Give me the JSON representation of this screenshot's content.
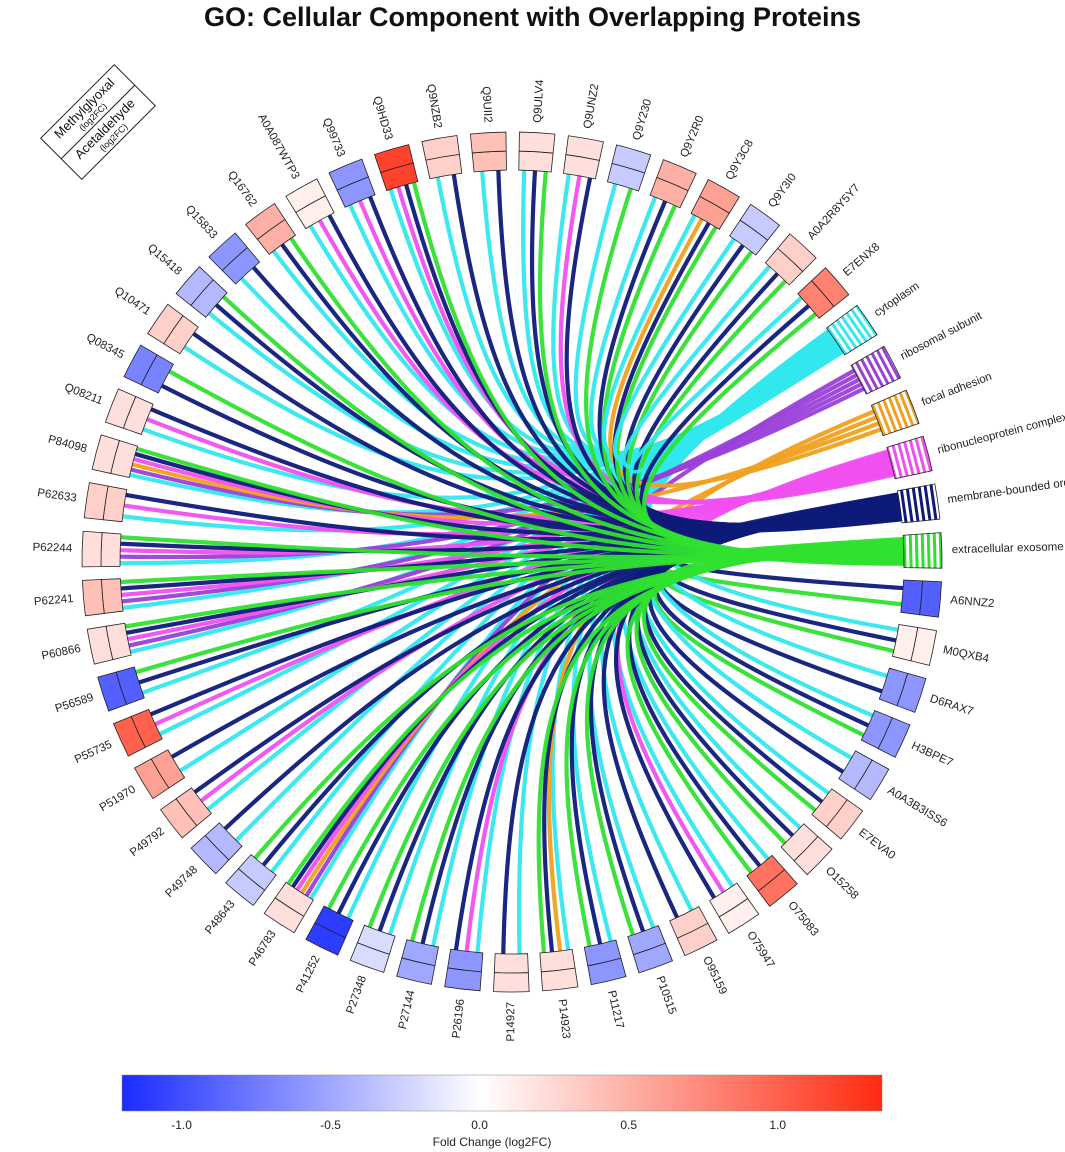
{
  "chart_data": {
    "type": "chord",
    "title": "GO: Cellular Component with Overlapping Proteins",
    "corner_legend": {
      "inner": {
        "name": "Methylglyoxal",
        "unit": "(log2FC)"
      },
      "outer": {
        "name": "Acetaldehyde",
        "unit": "(log2FC)"
      }
    },
    "colorbar": {
      "label": "Fold Change (log2FC)",
      "min": -1.2,
      "max": 1.35,
      "ticks": [
        -1.0,
        -0.5,
        0.0,
        0.5,
        1.0
      ],
      "tick_labels": [
        "-1.0",
        "-0.5",
        "0.0",
        "0.5",
        "1.0"
      ],
      "colors": [
        "#1a2bff",
        "#ffffff",
        "#ff2a10"
      ]
    },
    "terms": [
      {
        "name": "cytoplasm",
        "color": "#33e8ee"
      },
      {
        "name": "ribosomal subunit",
        "color": "#9a40d8"
      },
      {
        "name": "focal adhesion",
        "color": "#f0a020"
      },
      {
        "name": "ribonucleoprotein complex",
        "color": "#f050f0"
      },
      {
        "name": "membrane-bounded organelle",
        "color": "#0e1a78"
      },
      {
        "name": "extracellular exosome",
        "color": "#30e030"
      }
    ],
    "proteins": [
      {
        "id": "A6NNZ2",
        "methylglyoxal": -0.9,
        "acetaldehyde": -0.9,
        "terms": [
          4,
          5
        ]
      },
      {
        "id": "M0QXB4",
        "methylglyoxal": 0.1,
        "acetaldehyde": 0.1,
        "terms": [
          0,
          4,
          5
        ]
      },
      {
        "id": "D6RAX7",
        "methylglyoxal": -0.6,
        "acetaldehyde": -0.6,
        "terms": [
          0,
          4
        ]
      },
      {
        "id": "H3BPE7",
        "methylglyoxal": -0.6,
        "acetaldehyde": -0.6,
        "terms": [
          0,
          4,
          5
        ]
      },
      {
        "id": "A0A3B3ISS6",
        "methylglyoxal": -0.4,
        "acetaldehyde": -0.4,
        "terms": [
          0,
          4
        ]
      },
      {
        "id": "E7EVA0",
        "methylglyoxal": 0.3,
        "acetaldehyde": 0.3,
        "terms": [
          0,
          4,
          5
        ]
      },
      {
        "id": "O15258",
        "methylglyoxal": 0.2,
        "acetaldehyde": 0.2,
        "terms": [
          0,
          4,
          5
        ]
      },
      {
        "id": "O75083",
        "methylglyoxal": 0.9,
        "acetaldehyde": 0.9,
        "terms": [
          0,
          4,
          5
        ]
      },
      {
        "id": "O75947",
        "methylglyoxal": 0.1,
        "acetaldehyde": 0.1,
        "terms": [
          0,
          3,
          4
        ]
      },
      {
        "id": "O95159",
        "methylglyoxal": 0.3,
        "acetaldehyde": 0.3,
        "terms": [
          0,
          4
        ]
      },
      {
        "id": "P10515",
        "methylglyoxal": -0.5,
        "acetaldehyde": -0.5,
        "terms": [
          0,
          4,
          5
        ]
      },
      {
        "id": "P11217",
        "methylglyoxal": -0.6,
        "acetaldehyde": -0.6,
        "terms": [
          0,
          4,
          5
        ]
      },
      {
        "id": "P14923",
        "methylglyoxal": 0.2,
        "acetaldehyde": 0.2,
        "terms": [
          0,
          2,
          4,
          5
        ]
      },
      {
        "id": "P14927",
        "methylglyoxal": 0.2,
        "acetaldehyde": 0.2,
        "terms": [
          0,
          4
        ]
      },
      {
        "id": "P26196",
        "methylglyoxal": -0.6,
        "acetaldehyde": -0.6,
        "terms": [
          0,
          3,
          4
        ]
      },
      {
        "id": "P27144",
        "methylglyoxal": -0.5,
        "acetaldehyde": -0.5,
        "terms": [
          0,
          4,
          5
        ]
      },
      {
        "id": "P27348",
        "methylglyoxal": -0.2,
        "acetaldehyde": -0.2,
        "terms": [
          0,
          4,
          5
        ]
      },
      {
        "id": "P41252",
        "methylglyoxal": -1.1,
        "acetaldehyde": -1.1,
        "terms": [
          0,
          4,
          5
        ]
      },
      {
        "id": "P46783",
        "methylglyoxal": 0.2,
        "acetaldehyde": 0.2,
        "terms": [
          0,
          1,
          2,
          3,
          4,
          5
        ]
      },
      {
        "id": "P48643",
        "methylglyoxal": -0.3,
        "acetaldehyde": -0.3,
        "terms": [
          0,
          4,
          5
        ]
      },
      {
        "id": "P49748",
        "methylglyoxal": -0.4,
        "acetaldehyde": -0.4,
        "terms": [
          0,
          4
        ]
      },
      {
        "id": "P49792",
        "methylglyoxal": 0.4,
        "acetaldehyde": 0.4,
        "terms": [
          0,
          3,
          4
        ]
      },
      {
        "id": "P51970",
        "methylglyoxal": 0.6,
        "acetaldehyde": 0.6,
        "terms": [
          0,
          4
        ]
      },
      {
        "id": "P55735",
        "methylglyoxal": 1.0,
        "acetaldehyde": 1.0,
        "terms": [
          0,
          3,
          4
        ]
      },
      {
        "id": "P56589",
        "methylglyoxal": -0.9,
        "acetaldehyde": -0.9,
        "terms": [
          0,
          4,
          5
        ]
      },
      {
        "id": "P60866",
        "methylglyoxal": 0.2,
        "acetaldehyde": 0.2,
        "terms": [
          0,
          1,
          3,
          4,
          5
        ]
      },
      {
        "id": "P62241",
        "methylglyoxal": 0.4,
        "acetaldehyde": 0.4,
        "terms": [
          0,
          1,
          3,
          4,
          5
        ]
      },
      {
        "id": "P62244",
        "methylglyoxal": 0.2,
        "acetaldehyde": 0.2,
        "terms": [
          0,
          1,
          3,
          4,
          5
        ]
      },
      {
        "id": "P62633",
        "methylglyoxal": 0.3,
        "acetaldehyde": 0.3,
        "terms": [
          0,
          3,
          4
        ]
      },
      {
        "id": "P84098",
        "methylglyoxal": 0.2,
        "acetaldehyde": 0.2,
        "terms": [
          0,
          1,
          2,
          3,
          4,
          5
        ]
      },
      {
        "id": "Q08211",
        "methylglyoxal": 0.2,
        "acetaldehyde": 0.2,
        "terms": [
          0,
          3,
          4
        ]
      },
      {
        "id": "Q08345",
        "methylglyoxal": -0.7,
        "acetaldehyde": -0.7,
        "terms": [
          4,
          5
        ]
      },
      {
        "id": "Q10471",
        "methylglyoxal": 0.3,
        "acetaldehyde": 0.3,
        "terms": [
          0,
          4
        ]
      },
      {
        "id": "Q15418",
        "methylglyoxal": -0.4,
        "acetaldehyde": -0.4,
        "terms": [
          0,
          4,
          5
        ]
      },
      {
        "id": "Q15833",
        "methylglyoxal": -0.6,
        "acetaldehyde": -0.6,
        "terms": [
          0,
          4
        ]
      },
      {
        "id": "Q16762",
        "methylglyoxal": 0.5,
        "acetaldehyde": 0.5,
        "terms": [
          0,
          4,
          5
        ]
      },
      {
        "id": "A0A087WTP3",
        "methylglyoxal": 0.1,
        "acetaldehyde": 0.1,
        "terms": [
          0,
          3,
          4
        ]
      },
      {
        "id": "Q99733",
        "methylglyoxal": -0.6,
        "acetaldehyde": -0.6,
        "terms": [
          0,
          3,
          4
        ]
      },
      {
        "id": "Q9HD33",
        "methylglyoxal": 1.2,
        "acetaldehyde": 1.2,
        "terms": [
          0,
          3,
          4,
          5
        ]
      },
      {
        "id": "Q9NZB2",
        "methylglyoxal": 0.3,
        "acetaldehyde": 0.3,
        "terms": [
          0,
          4
        ]
      },
      {
        "id": "Q9UII2",
        "methylglyoxal": 0.4,
        "acetaldehyde": 0.4,
        "terms": [
          0,
          4
        ]
      },
      {
        "id": "Q9ULV4",
        "methylglyoxal": 0.2,
        "acetaldehyde": 0.2,
        "terms": [
          0,
          4,
          5
        ]
      },
      {
        "id": "Q9UNZ2",
        "methylglyoxal": 0.2,
        "acetaldehyde": 0.2,
        "terms": [
          0,
          3,
          4
        ]
      },
      {
        "id": "Q9Y230",
        "methylglyoxal": -0.3,
        "acetaldehyde": -0.3,
        "terms": [
          0,
          5
        ]
      },
      {
        "id": "Q9Y2R0",
        "methylglyoxal": 0.5,
        "acetaldehyde": 0.5,
        "terms": [
          0,
          4,
          5
        ]
      },
      {
        "id": "Q9Y3C8",
        "methylglyoxal": 0.6,
        "acetaldehyde": 0.6,
        "terms": [
          0,
          2,
          4,
          5
        ]
      },
      {
        "id": "Q9Y3I0",
        "methylglyoxal": -0.3,
        "acetaldehyde": -0.3,
        "terms": [
          0,
          4,
          5
        ]
      },
      {
        "id": "A0A2R8Y5Y7",
        "methylglyoxal": 0.3,
        "acetaldehyde": 0.3,
        "terms": [
          0,
          4,
          5
        ]
      },
      {
        "id": "E7ENX8",
        "methylglyoxal": 0.8,
        "acetaldehyde": 0.8,
        "terms": [
          0,
          4,
          5
        ]
      }
    ]
  }
}
